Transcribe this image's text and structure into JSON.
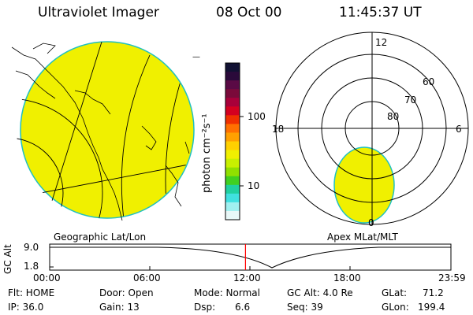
{
  "header": {
    "title": "Ultraviolet Imager",
    "date": "08 Oct 00",
    "time": "11:45:37 UT"
  },
  "colorbar": {
    "unit_label": "photon cm⁻²s⁻¹",
    "ticks": [
      "100",
      "10"
    ],
    "colors": [
      "#111133",
      "#2a0a3a",
      "#5a0a45",
      "#7a0a3a",
      "#a8003a",
      "#d40020",
      "#f03000",
      "#ff7000",
      "#ffa000",
      "#ffd000",
      "#f0f000",
      "#c8f000",
      "#90e000",
      "#40d020",
      "#20d0a0",
      "#40e0e0",
      "#a0f0f0",
      "#e8f8f8"
    ]
  },
  "geo_panel": {
    "caption": "Geographic Lat/Lon",
    "fill_color": "#f0f000"
  },
  "polar_panel": {
    "caption": "Apex MLat/MLT",
    "mlt_labels": {
      "top": "12",
      "left": "18",
      "right": "6",
      "bottom": "0"
    },
    "lat_labels": [
      "60",
      "70",
      "80"
    ],
    "fill_color": "#f0f000"
  },
  "altitude_strip": {
    "axis_label": "GC Alt",
    "y_ticks": [
      "9.0",
      "1.8"
    ],
    "x_ticks": [
      "00:00",
      "06:00",
      "12:00",
      "18:00",
      "23:59"
    ],
    "current_time_fraction": 0.488,
    "marker_color": "#ff0000"
  },
  "info": {
    "flt": "Flt: HOME",
    "ip": "IP: 36.0",
    "door": "Door: Open",
    "gain": "Gain: 13",
    "mode": "Mode: Normal",
    "dsp": "Dsp:",
    "dsp_value": "6.6",
    "gc_alt": "GC Alt: 4.0 Re",
    "seq": "Seq: 39",
    "glat": "GLat:",
    "glat_value": "71.2",
    "glon": "GLon:",
    "glon_value": "199.4"
  }
}
